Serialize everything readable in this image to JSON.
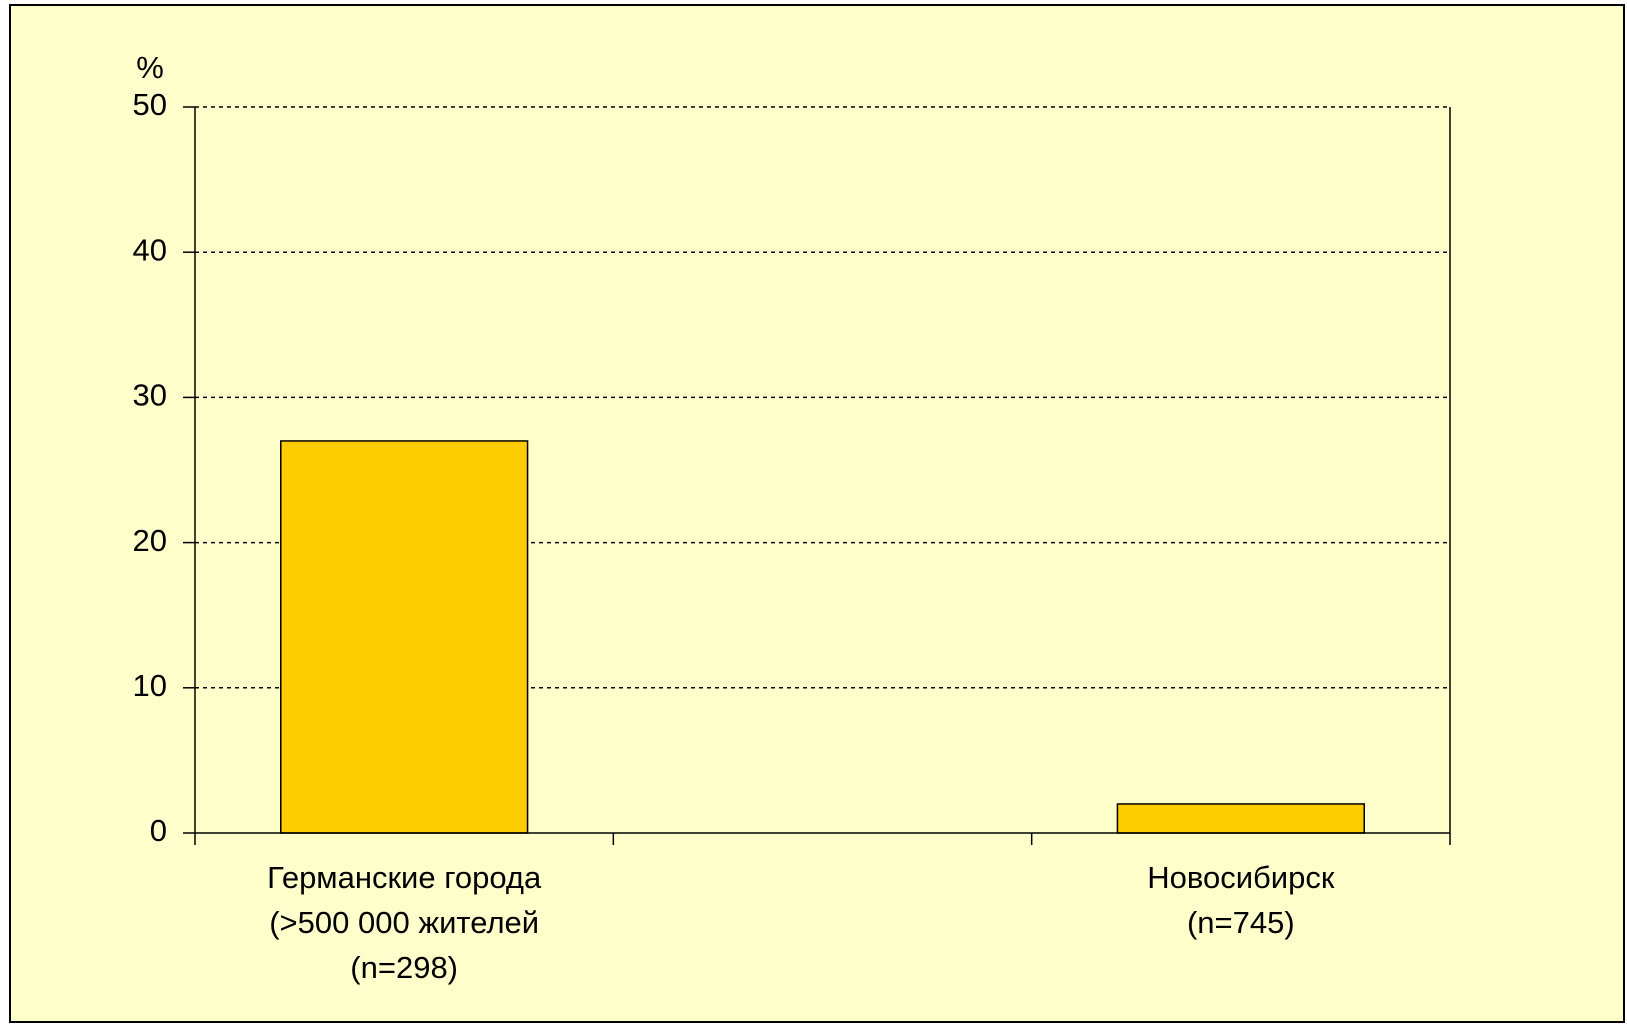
{
  "chart_data": {
    "type": "bar",
    "y_label": "%",
    "categories": [
      "Германские города\n(>500 000 жителей\n(n=298)",
      null,
      "Новосибирск\n(n=745)"
    ],
    "values": [
      27,
      null,
      2
    ],
    "color": "#FFCC00",
    "ylim": [
      0,
      50
    ],
    "yticks": [
      0,
      10,
      20,
      30,
      40,
      50
    ],
    "grid": true
  }
}
